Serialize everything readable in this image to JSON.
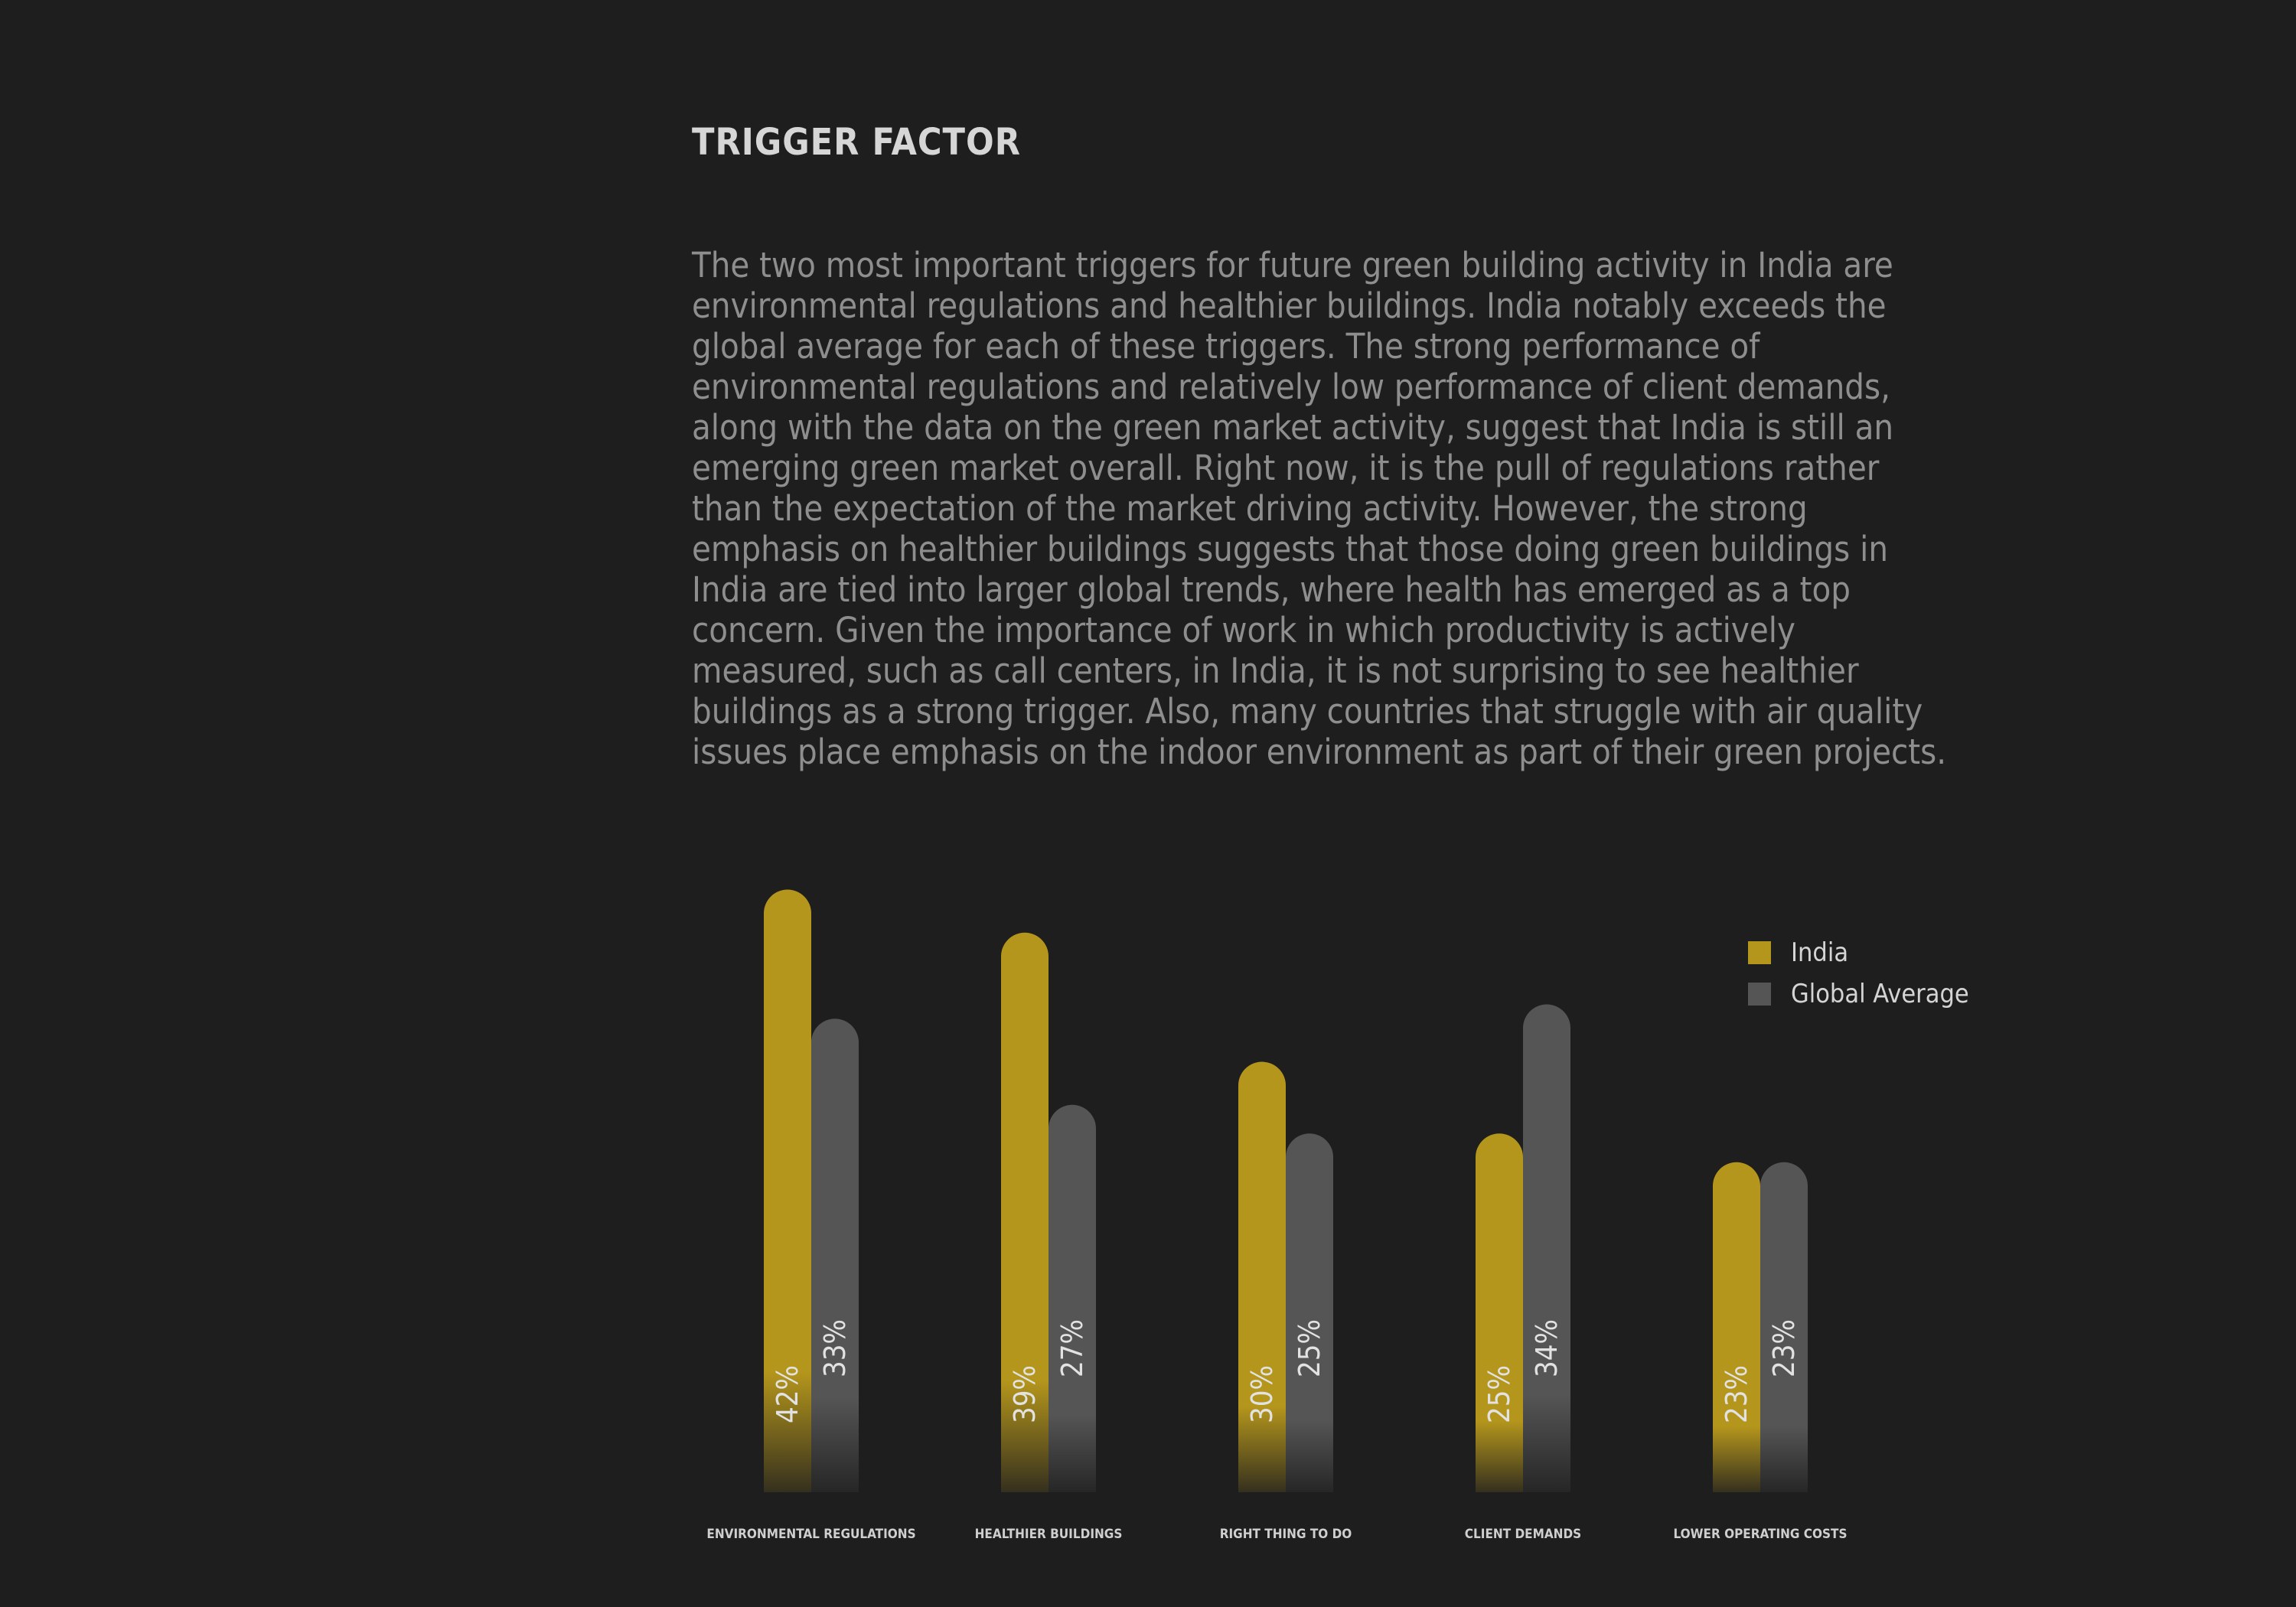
{
  "page": {
    "title": "TRIGGER FACTOR",
    "paragraph": "The two most important triggers for future green building activity in India are\nenvironmental regulations and healthier buildings. India notably exceeds the\nglobal average for each of these triggers. The strong performance of\nenvironmental regulations and relatively low performance of client demands,\nalong with the data on the green market activity, suggest that India is still an\nemerging green market overall. Right now, it is the pull of regulations rather\nthan the expectation of the market driving activity. However, the strong\nemphasis on healthier buildings suggests that those doing green buildings in\nIndia are tied into larger global trends, where health has emerged as a top\nconcern. Given the importance of work in which productivity is actively\nmeasured, such as call centers, in India, it is not surprising to see healthier\nbuildings as a strong trigger. Also, many countries that struggle with air quality\nissues place emphasis on the indoor environment as part of their green projects."
  },
  "colors": {
    "background": "#1e1e1e",
    "india": "#b5961c",
    "global": "#555555"
  },
  "chart_data": {
    "type": "bar",
    "categories": [
      "ENVIRONMENTAL REGULATIONS",
      "HEALTHIER BUILDINGS",
      "RIGHT THING TO DO",
      "CLIENT DEMANDS",
      "LOWER OPERATING COSTS"
    ],
    "series": [
      {
        "name": "India",
        "values": [
          42,
          39,
          30,
          25,
          23
        ],
        "labels": [
          "42%",
          "39%",
          "30%",
          "25%",
          "23%"
        ]
      },
      {
        "name": "Global Average",
        "values": [
          33,
          27,
          25,
          34,
          23
        ],
        "labels": [
          "33%",
          "27%",
          "25%",
          "34%",
          "23%"
        ]
      }
    ],
    "unit": "%",
    "legend_position": "top-right",
    "grid": false
  }
}
